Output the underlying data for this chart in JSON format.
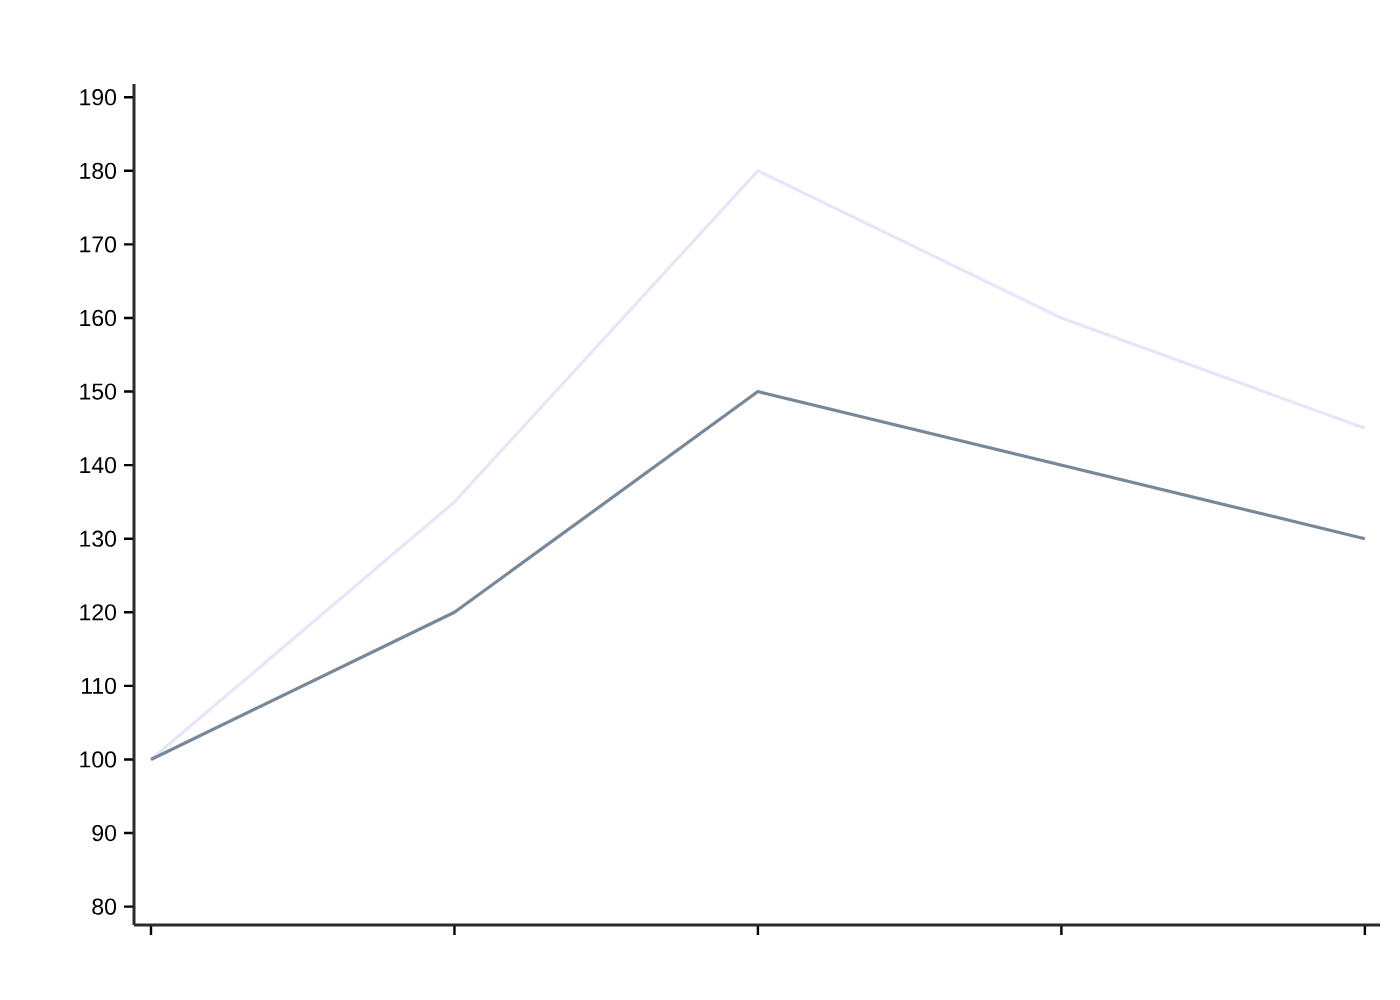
{
  "chart_data": {
    "type": "line",
    "categories": [
      null,
      null,
      null,
      null,
      null
    ],
    "series": [
      {
        "color": "#e6e6fa",
        "values": [
          100,
          135,
          180,
          160,
          145
        ]
      },
      {
        "color": "#778899",
        "values": [
          100,
          120,
          150,
          140,
          130
        ]
      }
    ],
    "ylim": [
      77.5,
      191.8
    ],
    "yticks": [
      80,
      90,
      100,
      110,
      120,
      130,
      140,
      150,
      160,
      170,
      180,
      190
    ],
    "grid": false,
    "marker": "none",
    "line_style": "solid"
  }
}
